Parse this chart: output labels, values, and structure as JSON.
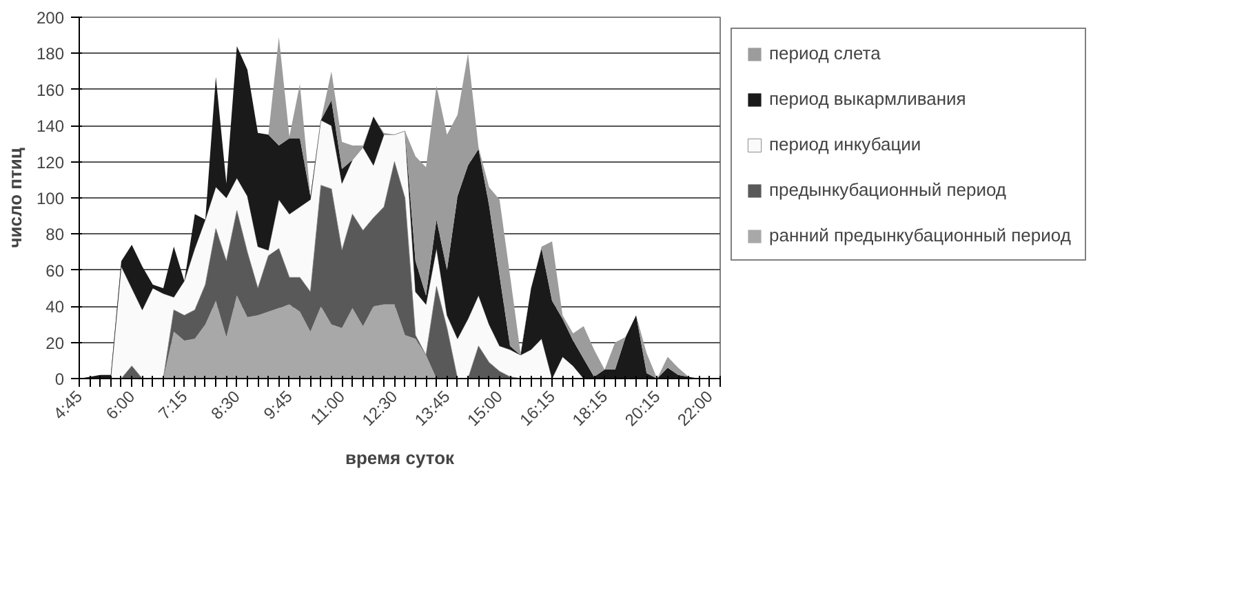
{
  "chart_data": {
    "type": "area",
    "stacked": true,
    "xlabel": "время суток",
    "ylabel": "число птиц",
    "categories": [
      "4:45",
      null,
      null,
      null,
      null,
      "6:00",
      null,
      null,
      null,
      null,
      "7:15",
      null,
      null,
      null,
      null,
      "8:30",
      null,
      null,
      null,
      null,
      "9:45",
      null,
      null,
      null,
      null,
      "11:00",
      null,
      null,
      null,
      null,
      "12:30",
      null,
      null,
      null,
      null,
      "13:45",
      null,
      null,
      null,
      null,
      "15:00",
      null,
      null,
      null,
      null,
      "16:15",
      null,
      null,
      null,
      null,
      "18:15",
      null,
      null,
      null,
      null,
      "20:15",
      null,
      null,
      null,
      null,
      "22:00",
      null
    ],
    "ylim": [
      0,
      200
    ],
    "yticks": [
      0,
      20,
      40,
      60,
      80,
      100,
      120,
      140,
      160,
      180,
      200
    ],
    "grid": "y",
    "legend": "right",
    "series": [
      {
        "name": "ранний предынкубационный период",
        "color": "#a8a8a8",
        "values": [
          0,
          0,
          0,
          0,
          0,
          0,
          0,
          0,
          0,
          26,
          21,
          22,
          30,
          43,
          23,
          46,
          34,
          35,
          37,
          39,
          41,
          37,
          26,
          40,
          30,
          28,
          39,
          29,
          40,
          41,
          41,
          24,
          22,
          13,
          0,
          0,
          0,
          0,
          0,
          0,
          0,
          0,
          0,
          0,
          0,
          0,
          0,
          0,
          0,
          0,
          0,
          0,
          0,
          0,
          0,
          0,
          0,
          0,
          0,
          0,
          0,
          0
        ]
      },
      {
        "name": "предынкубационный период",
        "color": "#595959",
        "values": [
          0,
          0,
          0,
          0,
          0,
          7,
          0,
          0,
          0,
          12,
          14,
          16,
          22,
          40,
          42,
          47,
          36,
          15,
          31,
          33,
          15,
          19,
          22,
          67,
          75,
          43,
          52,
          53,
          49,
          54,
          79,
          76,
          2,
          0,
          51,
          28,
          0,
          0,
          18,
          9,
          4,
          1,
          0,
          0,
          0,
          0,
          0,
          0,
          0,
          0,
          0,
          0,
          0,
          0,
          0,
          0,
          0,
          0,
          0,
          0,
          0,
          0
        ]
      },
      {
        "name": "период инкубации",
        "color": "#fafafa",
        "values": [
          0,
          0,
          0,
          0,
          62,
          43,
          38,
          50,
          47,
          7,
          19,
          34,
          36,
          23,
          35,
          18,
          31,
          23,
          3,
          27,
          35,
          39,
          51,
          36,
          35,
          37,
          30,
          46,
          29,
          40,
          15,
          37,
          24,
          28,
          21,
          7,
          22,
          33,
          28,
          21,
          14,
          15,
          13,
          16,
          22,
          0,
          12,
          7,
          0,
          0,
          0,
          0,
          0,
          0,
          0,
          0,
          0,
          0,
          0,
          0,
          0,
          0
        ]
      },
      {
        "name": "период выкармливания",
        "color": "#1a1a1a",
        "values": [
          0,
          1,
          2,
          2,
          3,
          24,
          24,
          2,
          3,
          28,
          0,
          19,
          0,
          61,
          8,
          73,
          70,
          63,
          64,
          30,
          42,
          38,
          2,
          0,
          14,
          8,
          0,
          0,
          27,
          0,
          0,
          0,
          17,
          5,
          16,
          25,
          79,
          85,
          81,
          66,
          39,
          2,
          0,
          34,
          50,
          43,
          21,
          14,
          11,
          1,
          5,
          5,
          23,
          35,
          3,
          0,
          6,
          2,
          1,
          0,
          0,
          0
        ]
      },
      {
        "name": "период слета",
        "color": "#9c9c9c",
        "values": [
          0,
          0,
          0,
          0,
          0,
          0,
          0,
          0,
          0,
          0,
          0,
          0,
          0,
          0,
          0,
          0,
          0,
          0,
          0,
          60,
          1,
          30,
          0,
          0,
          16,
          15,
          8,
          1,
          0,
          1,
          0,
          0,
          58,
          71,
          74,
          75,
          45,
          62,
          1,
          10,
          42,
          39,
          1,
          0,
          1,
          33,
          2,
          4,
          18,
          15,
          0,
          15,
          0,
          0,
          11,
          0,
          6,
          4,
          0,
          0,
          0,
          0
        ]
      }
    ]
  }
}
